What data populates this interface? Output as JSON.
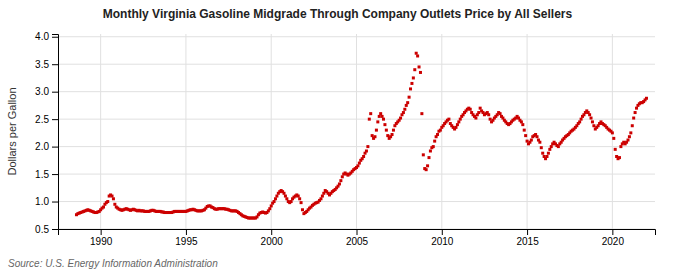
{
  "chart_data": {
    "type": "scatter",
    "title": "Monthly Virginia Gasoline Midgrade Through Company Outlets Price by All Sellers",
    "ylabel": "Dollars per Gallon",
    "annotations": [
      "Source: U.S. Energy Information Administration"
    ],
    "xlim": [
      1987.5,
      2022.5
    ],
    "ylim": [
      0.5,
      4.05
    ],
    "xticks": [
      1990,
      1995,
      2000,
      2005,
      2010,
      2015,
      2020
    ],
    "yticks": [
      0.5,
      {
        "value": 1.0,
        "label": "1.0"
      },
      1.5,
      {
        "value": 2.0,
        "label": "2.0"
      },
      2.5,
      {
        "value": 3.0,
        "label": "3.0"
      },
      3.5,
      {
        "value": 4.0,
        "label": "4.0"
      }
    ],
    "grid": true,
    "color": "#CC0000",
    "marker": "square",
    "x": [
      1988.583,
      1988.667,
      1988.75,
      1988.833,
      1988.917,
      1989.0,
      1989.083,
      1989.167,
      1989.25,
      1989.333,
      1989.417,
      1989.5,
      1989.583,
      1989.667,
      1989.75,
      1989.833,
      1989.917,
      1990.0,
      1990.083,
      1990.167,
      1990.25,
      1990.333,
      1990.417,
      1990.5,
      1990.583,
      1990.667,
      1990.75,
      1990.833,
      1990.917,
      1991.0,
      1991.083,
      1991.167,
      1991.25,
      1991.333,
      1991.417,
      1991.5,
      1991.583,
      1991.667,
      1991.75,
      1991.833,
      1991.917,
      1992.0,
      1992.083,
      1992.167,
      1992.25,
      1992.333,
      1992.417,
      1992.5,
      1992.583,
      1992.667,
      1992.75,
      1992.833,
      1992.917,
      1993.0,
      1993.083,
      1993.167,
      1993.25,
      1993.333,
      1993.417,
      1993.5,
      1993.583,
      1993.667,
      1993.75,
      1993.833,
      1993.917,
      1994.0,
      1994.083,
      1994.167,
      1994.25,
      1994.333,
      1994.417,
      1994.5,
      1994.583,
      1994.667,
      1994.75,
      1994.833,
      1994.917,
      1995.0,
      1995.083,
      1995.167,
      1995.25,
      1995.333,
      1995.417,
      1995.5,
      1995.583,
      1995.667,
      1995.75,
      1995.833,
      1995.917,
      1996.0,
      1996.083,
      1996.167,
      1996.25,
      1996.333,
      1996.417,
      1996.5,
      1996.583,
      1996.667,
      1996.75,
      1996.833,
      1996.917,
      1997.0,
      1997.083,
      1997.167,
      1997.25,
      1997.333,
      1997.417,
      1997.5,
      1997.583,
      1997.667,
      1997.75,
      1997.833,
      1997.917,
      1998.0,
      1998.083,
      1998.167,
      1998.25,
      1998.333,
      1998.417,
      1998.5,
      1998.583,
      1998.667,
      1998.75,
      1998.833,
      1998.917,
      1999.0,
      1999.083,
      1999.167,
      1999.25,
      1999.333,
      1999.417,
      1999.5,
      1999.583,
      1999.667,
      1999.75,
      1999.833,
      1999.917,
      2000.0,
      2000.083,
      2000.167,
      2000.25,
      2000.333,
      2000.417,
      2000.5,
      2000.583,
      2000.667,
      2000.75,
      2000.833,
      2000.917,
      2001.0,
      2001.083,
      2001.167,
      2001.25,
      2001.333,
      2001.417,
      2001.5,
      2001.583,
      2001.667,
      2001.75,
      2001.833,
      2001.917,
      2002.0,
      2002.083,
      2002.167,
      2002.25,
      2002.333,
      2002.417,
      2002.5,
      2002.583,
      2002.667,
      2002.75,
      2002.833,
      2002.917,
      2003.0,
      2003.083,
      2003.167,
      2003.25,
      2003.333,
      2003.417,
      2003.5,
      2003.583,
      2003.667,
      2003.75,
      2003.833,
      2003.917,
      2004.0,
      2004.083,
      2004.167,
      2004.25,
      2004.333,
      2004.417,
      2004.5,
      2004.583,
      2004.667,
      2004.75,
      2004.833,
      2004.917,
      2005.0,
      2005.083,
      2005.167,
      2005.25,
      2005.333,
      2005.417,
      2005.5,
      2005.583,
      2005.667,
      2005.75,
      2005.833,
      2005.917,
      2006.0,
      2006.083,
      2006.167,
      2006.25,
      2006.333,
      2006.417,
      2006.5,
      2006.583,
      2006.667,
      2006.75,
      2006.833,
      2006.917,
      2007.0,
      2007.083,
      2007.167,
      2007.25,
      2007.333,
      2007.417,
      2007.5,
      2007.583,
      2007.667,
      2007.75,
      2007.833,
      2007.917,
      2008.0,
      2008.083,
      2008.167,
      2008.25,
      2008.333,
      2008.417,
      2008.5,
      2008.583,
      2008.667,
      2008.75,
      2008.833,
      2008.917,
      2009.0,
      2009.083,
      2009.167,
      2009.25,
      2009.333,
      2009.417,
      2009.5,
      2009.583,
      2009.667,
      2009.75,
      2009.833,
      2009.917,
      2010.0,
      2010.083,
      2010.167,
      2010.25,
      2010.333,
      2010.417,
      2010.5,
      2010.583,
      2010.667,
      2010.75,
      2010.833,
      2010.917,
      2011.0,
      2011.083,
      2011.167,
      2011.25,
      2011.333,
      2011.417,
      2011.5,
      2011.583,
      2011.667,
      2011.75,
      2011.833,
      2011.917,
      2012.0,
      2012.083,
      2012.167,
      2012.25,
      2012.333,
      2012.417,
      2012.5,
      2012.583,
      2012.667,
      2012.75,
      2012.833,
      2012.917,
      2013.0,
      2013.083,
      2013.167,
      2013.25,
      2013.333,
      2013.417,
      2013.5,
      2013.583,
      2013.667,
      2013.75,
      2013.833,
      2013.917,
      2014.0,
      2014.083,
      2014.167,
      2014.25,
      2014.333,
      2014.417,
      2014.5,
      2014.583,
      2014.667,
      2014.75,
      2014.833,
      2014.917,
      2015.0,
      2015.083,
      2015.167,
      2015.25,
      2015.333,
      2015.417,
      2015.5,
      2015.583,
      2015.667,
      2015.75,
      2015.833,
      2015.917,
      2016.0,
      2016.083,
      2016.167,
      2016.25,
      2016.333,
      2016.417,
      2016.5,
      2016.583,
      2016.667,
      2016.75,
      2016.833,
      2016.917,
      2017.0,
      2017.083,
      2017.167,
      2017.25,
      2017.333,
      2017.417,
      2017.5,
      2017.583,
      2017.667,
      2017.75,
      2017.833,
      2017.917,
      2018.0,
      2018.083,
      2018.167,
      2018.25,
      2018.333,
      2018.417,
      2018.5,
      2018.583,
      2018.667,
      2018.75,
      2018.833,
      2018.917,
      2019.0,
      2019.083,
      2019.167,
      2019.25,
      2019.333,
      2019.417,
      2019.5,
      2019.583,
      2019.667,
      2019.75,
      2019.833,
      2019.917,
      2020.0,
      2020.083,
      2020.167,
      2020.25,
      2020.333,
      2020.417,
      2020.5,
      2020.583,
      2020.667,
      2020.75,
      2020.833,
      2020.917,
      2021.0,
      2021.083,
      2021.167,
      2021.25,
      2021.333,
      2021.417,
      2021.5,
      2021.583,
      2021.667,
      2021.75,
      2021.833,
      2021.917,
      2022.0
    ],
    "values": [
      0.76,
      0.78,
      0.79,
      0.8,
      0.81,
      0.82,
      0.83,
      0.84,
      0.85,
      0.84,
      0.83,
      0.82,
      0.81,
      0.8,
      0.8,
      0.81,
      0.82,
      0.85,
      0.88,
      0.9,
      0.95,
      0.98,
      1.0,
      1.1,
      1.12,
      1.1,
      1.05,
      0.95,
      0.9,
      0.88,
      0.86,
      0.85,
      0.84,
      0.85,
      0.86,
      0.87,
      0.86,
      0.85,
      0.84,
      0.85,
      0.86,
      0.85,
      0.84,
      0.83,
      0.84,
      0.83,
      0.83,
      0.83,
      0.82,
      0.82,
      0.82,
      0.82,
      0.83,
      0.84,
      0.84,
      0.83,
      0.82,
      0.82,
      0.82,
      0.82,
      0.81,
      0.81,
      0.8,
      0.8,
      0.8,
      0.8,
      0.8,
      0.8,
      0.81,
      0.82,
      0.82,
      0.82,
      0.82,
      0.82,
      0.82,
      0.82,
      0.82,
      0.82,
      0.83,
      0.84,
      0.85,
      0.85,
      0.86,
      0.85,
      0.84,
      0.83,
      0.83,
      0.83,
      0.83,
      0.84,
      0.85,
      0.88,
      0.91,
      0.92,
      0.92,
      0.9,
      0.89,
      0.87,
      0.86,
      0.86,
      0.87,
      0.87,
      0.87,
      0.87,
      0.87,
      0.86,
      0.86,
      0.85,
      0.84,
      0.83,
      0.83,
      0.83,
      0.83,
      0.82,
      0.8,
      0.78,
      0.76,
      0.74,
      0.73,
      0.72,
      0.71,
      0.7,
      0.7,
      0.7,
      0.7,
      0.7,
      0.7,
      0.72,
      0.76,
      0.79,
      0.8,
      0.81,
      0.8,
      0.79,
      0.8,
      0.83,
      0.87,
      0.92,
      0.97,
      1.0,
      1.05,
      1.1,
      1.15,
      1.18,
      1.2,
      1.18,
      1.15,
      1.1,
      1.05,
      1.0,
      0.98,
      1.0,
      1.05,
      1.08,
      1.1,
      1.12,
      1.1,
      1.05,
      0.98,
      0.85,
      0.78,
      0.8,
      0.82,
      0.85,
      0.88,
      0.9,
      0.93,
      0.95,
      0.97,
      0.98,
      0.99,
      1.02,
      1.05,
      1.1,
      1.15,
      1.2,
      1.18,
      1.15,
      1.12,
      1.15,
      1.18,
      1.2,
      1.22,
      1.25,
      1.28,
      1.32,
      1.38,
      1.45,
      1.5,
      1.52,
      1.5,
      1.48,
      1.5,
      1.52,
      1.55,
      1.58,
      1.6,
      1.62,
      1.65,
      1.7,
      1.75,
      1.78,
      1.82,
      1.88,
      1.92,
      2.0,
      2.5,
      2.6,
      2.2,
      2.15,
      2.18,
      2.3,
      2.45,
      2.55,
      2.6,
      2.55,
      2.5,
      2.4,
      2.3,
      2.2,
      2.15,
      2.18,
      2.22,
      2.3,
      2.38,
      2.42,
      2.45,
      2.48,
      2.52,
      2.58,
      2.62,
      2.68,
      2.75,
      2.8,
      2.9,
      3.05,
      3.15,
      3.25,
      3.4,
      3.7,
      3.65,
      3.45,
      3.35,
      2.6,
      1.85,
      1.6,
      1.58,
      1.65,
      1.8,
      1.92,
      1.98,
      2.0,
      2.1,
      2.18,
      2.22,
      2.28,
      2.3,
      2.35,
      2.38,
      2.42,
      2.45,
      2.48,
      2.5,
      2.42,
      2.38,
      2.35,
      2.32,
      2.35,
      2.4,
      2.45,
      2.5,
      2.55,
      2.58,
      2.62,
      2.65,
      2.68,
      2.7,
      2.68,
      2.62,
      2.58,
      2.55,
      2.52,
      2.58,
      2.62,
      2.7,
      2.65,
      2.62,
      2.58,
      2.6,
      2.62,
      2.58,
      2.5,
      2.45,
      2.48,
      2.52,
      2.55,
      2.58,
      2.62,
      2.6,
      2.55,
      2.52,
      2.48,
      2.45,
      2.42,
      2.4,
      2.42,
      2.45,
      2.48,
      2.5,
      2.52,
      2.55,
      2.52,
      2.48,
      2.45,
      2.4,
      2.3,
      2.2,
      2.1,
      2.05,
      2.08,
      2.12,
      2.18,
      2.2,
      2.22,
      2.18,
      2.12,
      2.08,
      1.98,
      1.88,
      1.82,
      1.78,
      1.82,
      1.88,
      1.95,
      2.0,
      2.05,
      2.08,
      2.05,
      2.02,
      2.0,
      2.05,
      2.08,
      2.12,
      2.15,
      2.18,
      2.2,
      2.22,
      2.25,
      2.28,
      2.3,
      2.32,
      2.35,
      2.38,
      2.42,
      2.45,
      2.5,
      2.55,
      2.58,
      2.62,
      2.65,
      2.62,
      2.58,
      2.52,
      2.45,
      2.38,
      2.32,
      2.35,
      2.38,
      2.42,
      2.45,
      2.42,
      2.4,
      2.38,
      2.35,
      2.32,
      2.3,
      2.28,
      2.25,
      2.15,
      1.95,
      1.82,
      1.78,
      1.8,
      2.0,
      2.05,
      2.08,
      2.05,
      2.08,
      2.12,
      2.18,
      2.25,
      2.38,
      2.52,
      2.62,
      2.7,
      2.75,
      2.78,
      2.8,
      2.8,
      2.82,
      2.85,
      2.88
    ]
  }
}
